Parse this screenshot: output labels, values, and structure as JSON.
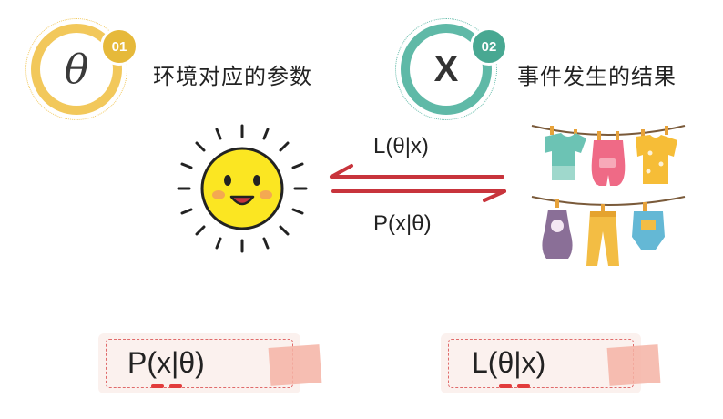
{
  "badge_left": {
    "symbol": "θ",
    "number": "01",
    "caption": "环境对应的参数"
  },
  "badge_right": {
    "symbol": "X",
    "number": "02",
    "caption": "事件发生的结果"
  },
  "relations": {
    "top_label": "L(θ|x)",
    "bottom_label": "P(x|θ)"
  },
  "formula_boxes": {
    "left": "P(x|θ)",
    "right": "L(θ|x)"
  },
  "colors": {
    "yellow": "#f2c85b",
    "teal": "#5fb9a7",
    "arrow": "#c8343c",
    "dash": "#e06b6b",
    "tape": "#f4b3a4"
  }
}
